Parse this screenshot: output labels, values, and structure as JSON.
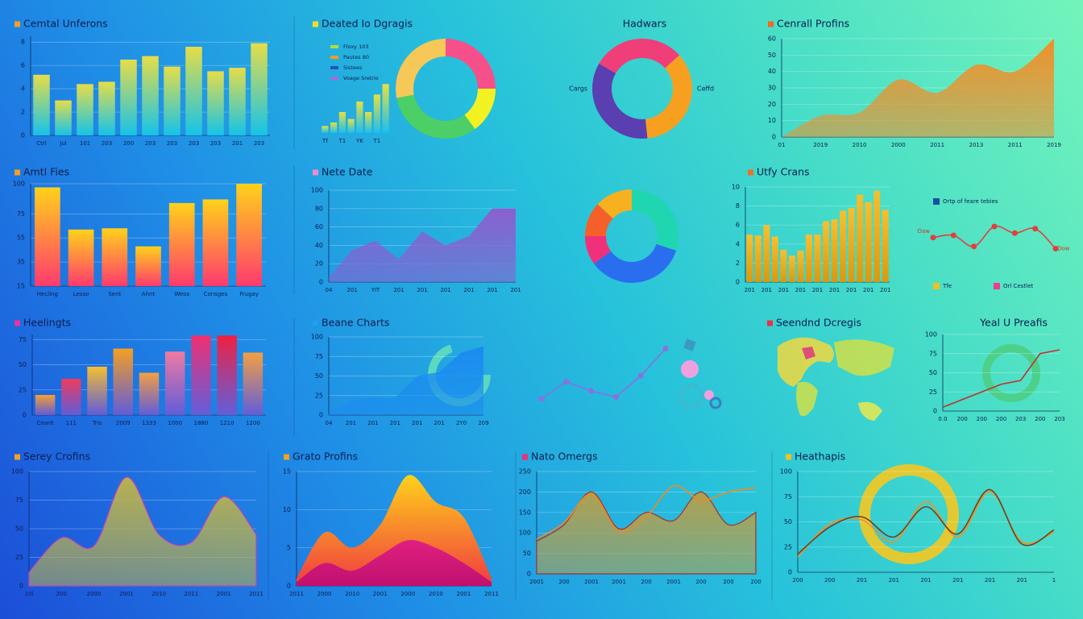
{
  "chart_data": [
    {
      "type": "bar",
      "title": "Cemtal Unferons",
      "categories": [
        "Ctrl",
        "Jul",
        "101",
        "203",
        "200",
        "203",
        "203",
        "203",
        "203",
        "201",
        "203"
      ],
      "values": [
        5.2,
        3.0,
        4.4,
        4.6,
        6.5,
        6.8,
        5.9,
        7.6,
        5.5,
        5.8,
        7.9
      ],
      "colors": [
        "#e6dd48",
        "#14c3ea"
      ],
      "ylim": [
        0,
        8.5
      ],
      "yticks": [
        0,
        2,
        4,
        6,
        8
      ],
      "grid": true
    },
    {
      "type": "bar",
      "categories": [
        "Tf",
        null,
        "T1",
        null,
        "YK",
        null,
        "T1",
        null
      ],
      "values": [
        1,
        1.5,
        3,
        2,
        4.5,
        3,
        5.5,
        7
      ],
      "colors": [
        "#e8e040",
        "#18c0f0"
      ],
      "ylim": [
        0,
        7.5
      ]
    },
    {
      "type": "donut",
      "title": "Deated Io Dgragis",
      "values": [
        25,
        15,
        32,
        28
      ],
      "slice_colors": [
        "#f5508a",
        "#f2f222",
        "#4ccf66",
        "#f5c858"
      ],
      "legend": [
        {
          "name": "Floxy 103",
          "color": "#a8e040"
        },
        {
          "name": "Pautes 80",
          "color": "#f59a20"
        },
        {
          "name": "Sistees",
          "color": "#2a50c0"
        },
        {
          "name": "Voage Sretrio",
          "color": "#a070d8"
        }
      ]
    },
    {
      "type": "donut",
      "title": "Hadwars",
      "values": [
        30,
        35,
        35
      ],
      "slice_colors": [
        "#f03e78",
        "#f7a020",
        "#5a3fb0"
      ],
      "annotations": [
        "Cargs",
        "Ceffd"
      ]
    },
    {
      "type": "area",
      "title": "Cenrall Profins",
      "categories": [
        "01",
        "2019",
        "2010",
        "2000",
        "2011",
        "2013",
        "2011",
        "2019"
      ],
      "series": [
        {
          "color": "#f0902a",
          "values": [
            0,
            13,
            15,
            35,
            27,
            44,
            40,
            60
          ],
          "fill": true
        }
      ],
      "ylim": [
        0,
        60
      ],
      "yticks": [
        0,
        10,
        20,
        30,
        40,
        50,
        60
      ],
      "grid": true
    },
    {
      "type": "bar",
      "title": "Amtl Fies",
      "categories": [
        "Hecling",
        "Lesso",
        "Sent",
        "Ahnt",
        "Weos",
        "Consges",
        "Frugay"
      ],
      "values": [
        97,
        62,
        63,
        48,
        84,
        87,
        100
      ],
      "colors": [
        "#ffd21a",
        "#ff3a6e"
      ],
      "ylim": [
        15,
        100
      ],
      "yticks": [
        15,
        35,
        55,
        75,
        100
      ],
      "grid": true
    },
    {
      "type": "area",
      "title": "Nete Date",
      "categories": [
        "04",
        "201",
        "YIT",
        "201",
        "201",
        "201",
        "201",
        "201",
        "201"
      ],
      "series": [
        {
          "color": "#8a5fd0",
          "values": [
            5,
            35,
            45,
            25,
            55,
            40,
            50,
            80,
            80
          ],
          "fill": true,
          "straight": true
        }
      ],
      "ylim": [
        0,
        100
      ],
      "yticks": [
        0,
        20,
        40,
        60,
        80,
        100
      ],
      "grid": true
    },
    {
      "type": "donut",
      "values": [
        30,
        35,
        10,
        12,
        13
      ],
      "slice_colors": [
        "#1fd6b0",
        "#2a6ef0",
        "#f0307a",
        "#f5602a",
        "#f7b020"
      ]
    },
    {
      "type": "bar",
      "title": "Utfy Crans",
      "categories": [
        "201",
        null,
        "201",
        null,
        "201",
        null,
        "201",
        null,
        "201",
        null,
        "201",
        null,
        "201",
        null,
        "201",
        null,
        "201"
      ],
      "values": [
        5,
        4.9,
        6,
        4.8,
        3.4,
        2.8,
        3.3,
        5,
        5,
        6.4,
        6.6,
        7.5,
        7.8,
        9.2,
        8.4,
        9.6,
        7.6
      ],
      "colors": [
        "#f5c030",
        "#d89a10"
      ],
      "ylim": [
        0,
        10
      ],
      "yticks": [
        0,
        2,
        4,
        6,
        8,
        10
      ],
      "grid": true
    },
    {
      "type": "line",
      "series": [
        {
          "color": "#e04040",
          "values": [
            5.5,
            6,
            3.5,
            8,
            6.5,
            7.5,
            3
          ],
          "markers": true
        }
      ],
      "ylim": [
        0,
        10
      ],
      "annotations": [
        "Daw",
        "Dow"
      ],
      "legend": [
        {
          "name": "Ortp of feare tebies",
          "color": "#1a4fa0"
        },
        {
          "name": "Tfe",
          "color": "#f0c020"
        },
        {
          "name": "Orl Cestlet",
          "color": "#f03a8a"
        }
      ]
    },
    {
      "type": "bar",
      "title": "Heelingts",
      "categories": [
        "Cearit",
        "111",
        "Tris",
        "2009",
        "1333",
        "1000",
        "1880",
        "1210",
        "1200"
      ],
      "values": [
        20,
        36,
        48,
        66,
        42,
        63,
        79,
        79,
        62
      ],
      "colors": [
        "#f5a030",
        "#f03a5a",
        "#f5c030",
        "#f5a020",
        "#f5a040",
        "#f07aa0",
        "#f03070",
        "#f02040",
        "#f5a040"
      ],
      "base_color": "#6a5ad8",
      "ylim": [
        0,
        80
      ],
      "yticks": [
        0,
        25,
        50,
        75
      ],
      "grid": true
    },
    {
      "type": "area",
      "title": "Beane Charts",
      "categories": [
        "04",
        "201",
        "201",
        "201",
        "201",
        "201",
        "2Y0",
        "209"
      ],
      "series": [
        {
          "color": "#1a8cf0",
          "values": [
            2,
            18,
            22,
            22,
            50,
            55,
            80,
            88
          ],
          "fill": true,
          "straight": true
        }
      ],
      "ylim": [
        0,
        100
      ],
      "yticks": [
        0,
        25,
        50,
        75,
        100
      ],
      "grid": true
    },
    {
      "type": "line",
      "series": [
        {
          "color": "#8a70e0",
          "values": [
            0.7,
            3.5,
            2,
            1,
            4.5,
            9
          ],
          "markers": true,
          "straight": true
        }
      ],
      "ylim": [
        0,
        10
      ]
    },
    {
      "type": "map",
      "title": "Seendnd Dcregis"
    },
    {
      "type": "line",
      "title": "Yeal U Preafis",
      "categories": [
        "0.0",
        "200",
        "200",
        "200",
        "203",
        "200",
        "203"
      ],
      "series": [
        {
          "color": "#c03030",
          "values": [
            5,
            15,
            25,
            35,
            40,
            75,
            80
          ],
          "straight": true
        }
      ],
      "ylim": [
        0,
        100
      ],
      "yticks": [
        0,
        25,
        50,
        75,
        100
      ],
      "grid": true
    },
    {
      "type": "area",
      "title": "Serey Crofins",
      "categories": [
        "10l",
        "200",
        "2000",
        "2001",
        "2010",
        "2011",
        "2001",
        "2011"
      ],
      "series": [
        {
          "color": "#b8b050",
          "values": [
            12,
            42,
            35,
            95,
            45,
            38,
            78,
            45
          ],
          "fill": true,
          "stroke": "#c040c0"
        }
      ],
      "ylim": [
        0,
        100
      ],
      "yticks": [
        0,
        25,
        50,
        75,
        100
      ],
      "grid": true
    },
    {
      "type": "area",
      "title": "Grato Profins",
      "categories": [
        "2011",
        "2000",
        "2010",
        "2001",
        "2000",
        "2010",
        "2001",
        "2011"
      ],
      "series": [
        {
          "colors": [
            "#ffd21a",
            "#f03a40"
          ],
          "values": [
            1,
            7,
            5,
            8,
            14.5,
            11,
            9,
            1
          ],
          "fill": true
        },
        {
          "colors": [
            "#e02080",
            "#c01070"
          ],
          "values": [
            0.5,
            3,
            2,
            4,
            6,
            5,
            3,
            0.5
          ],
          "fill": true
        }
      ],
      "ylim": [
        0,
        15
      ],
      "yticks": [
        0,
        5,
        10,
        15
      ],
      "grid": true
    },
    {
      "type": "area",
      "title": "Nato Omergs",
      "categories": [
        "2001",
        "200",
        "2001",
        "2001",
        "200",
        "2001",
        "200",
        "200",
        "200"
      ],
      "series": [
        {
          "color": "#b0a050",
          "values": [
            80,
            120,
            200,
            110,
            150,
            130,
            200,
            120,
            150
          ],
          "fill": true,
          "stroke": "#a03030"
        },
        {
          "color": "#f08a20",
          "values": [
            85,
            125,
            195,
            105,
            140,
            215,
            180,
            200,
            210
          ]
        }
      ],
      "ylim": [
        0,
        250
      ],
      "yticks": [
        0,
        50,
        100,
        150,
        200,
        250
      ],
      "grid": true
    },
    {
      "type": "line",
      "title": "Heathapis",
      "categories": [
        "200",
        "200",
        "201",
        "201",
        "201",
        "201",
        "201",
        "201",
        "1"
      ],
      "series": [
        {
          "color": "#f59020",
          "values": [
            15,
            48,
            52,
            30,
            70,
            35,
            80,
            30,
            40
          ]
        },
        {
          "color": "#704020",
          "values": [
            18,
            45,
            55,
            35,
            65,
            38,
            82,
            28,
            42
          ]
        }
      ],
      "ylim": [
        0,
        100
      ],
      "yticks": [
        0,
        25,
        50,
        75,
        100
      ],
      "grid": true
    }
  ]
}
